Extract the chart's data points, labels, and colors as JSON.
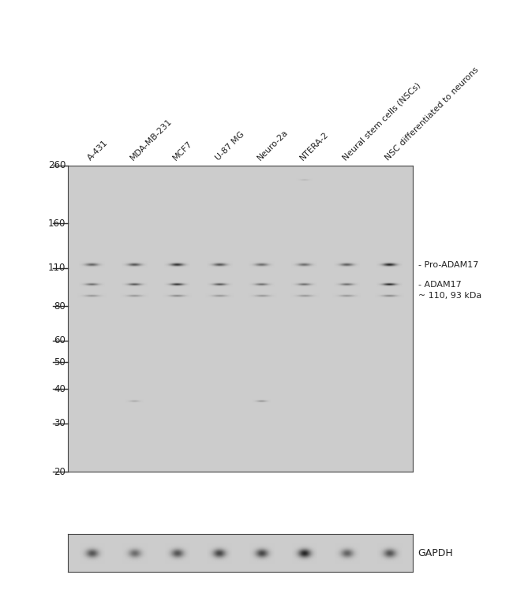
{
  "white_bg": "#ffffff",
  "blot_bg": "#cccccc",
  "border_color": "#444444",
  "ladder_marks": [
    260,
    160,
    110,
    80,
    60,
    50,
    40,
    30,
    20
  ],
  "sample_labels": [
    "A-431",
    "MDA-MB-231",
    "MCF7",
    "U-87 MG",
    "Neuro-2a",
    "NTERA-2",
    "Neural stem cells (NSCs)",
    "NSC differentiated to neurons"
  ],
  "right_labels": [
    "- Pro-ADAM17",
    "- ADAM17",
    "~ 110, 93 kDa"
  ],
  "gapdh_label": "GAPDH",
  "n_samples": 8,
  "pro_adam17_kda": 113,
  "adam17_kda": 96,
  "faint_kda": 87,
  "ns_band1_lane": 1,
  "ns_band1_kda": 36,
  "ns_band2_lane": 4,
  "ns_band2_kda": 36,
  "high_band_lane": 5,
  "high_band_kda": 230,
  "pro_intensities": [
    2.2,
    2.5,
    3.2,
    2.5,
    2.0,
    2.0,
    2.3,
    3.5
  ],
  "adam_intensities": [
    2.0,
    2.5,
    3.2,
    2.5,
    2.0,
    2.0,
    2.0,
    3.5
  ],
  "faint_intensities": [
    1.2,
    1.2,
    1.5,
    1.2,
    1.2,
    1.2,
    1.2,
    1.5
  ],
  "gapdh_intensities": [
    2.5,
    2.0,
    2.5,
    2.8,
    2.8,
    3.5,
    2.2,
    2.5
  ],
  "ns_intensity1": 0.8,
  "ns_intensity2": 1.3,
  "high_intensity": 0.5
}
